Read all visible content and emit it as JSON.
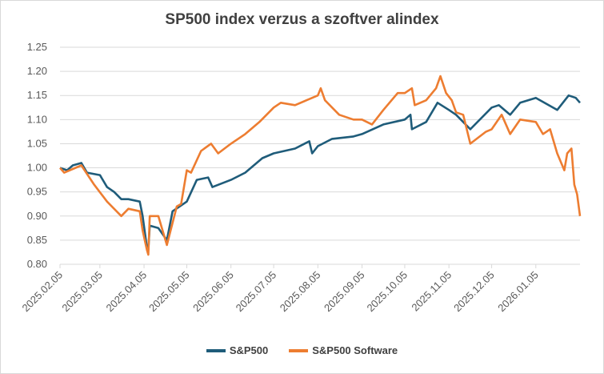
{
  "chart_data": {
    "type": "line",
    "title": "SP500 index verzus a szoftver alindex",
    "xlabel": "",
    "ylabel": "",
    "ylim": [
      0.8,
      1.25
    ],
    "yticks": [
      "0.80",
      "0.85",
      "0.90",
      "0.95",
      "1.00",
      "1.05",
      "1.10",
      "1.15",
      "1.20",
      "1.25"
    ],
    "xlim": [
      "2025-02-05",
      "2026-02-05"
    ],
    "xticks": [
      {
        "date": "2025-02-05",
        "label": "2025.02.05"
      },
      {
        "date": "2025-03-05",
        "label": "2025.03.05"
      },
      {
        "date": "2025-04-05",
        "label": "2025.04.05"
      },
      {
        "date": "2025-05-05",
        "label": "2025.05.05"
      },
      {
        "date": "2025-06-05",
        "label": "2025.06.05"
      },
      {
        "date": "2025-07-05",
        "label": "2025.07.05"
      },
      {
        "date": "2025-08-05",
        "label": "2025.08.05"
      },
      {
        "date": "2025-09-05",
        "label": "2025.09.05"
      },
      {
        "date": "2025-10-05",
        "label": "2025.10.05"
      },
      {
        "date": "2025-11-05",
        "label": "2025.11.05"
      },
      {
        "date": "2025-12-05",
        "label": "2025.12.05"
      },
      {
        "date": "2026-01-05",
        "label": "2026.01.05"
      }
    ],
    "grid": true,
    "legend_position": "bottom",
    "series": [
      {
        "name": "S&P500",
        "color": "#1F5C7A",
        "points": [
          [
            "2025-02-05",
            1.0
          ],
          [
            "2025-02-10",
            0.995
          ],
          [
            "2025-02-14",
            1.005
          ],
          [
            "2025-02-20",
            1.01
          ],
          [
            "2025-02-24",
            0.99
          ],
          [
            "2025-03-05",
            0.985
          ],
          [
            "2025-03-10",
            0.96
          ],
          [
            "2025-03-15",
            0.95
          ],
          [
            "2025-03-20",
            0.935
          ],
          [
            "2025-03-25",
            0.935
          ],
          [
            "2025-04-02",
            0.93
          ],
          [
            "2025-04-04",
            0.9
          ],
          [
            "2025-04-07",
            0.835
          ],
          [
            "2025-04-08",
            0.83
          ],
          [
            "2025-04-09",
            0.88
          ],
          [
            "2025-04-15",
            0.875
          ],
          [
            "2025-04-21",
            0.85
          ],
          [
            "2025-04-25",
            0.91
          ],
          [
            "2025-05-05",
            0.93
          ],
          [
            "2025-05-12",
            0.975
          ],
          [
            "2025-05-20",
            0.98
          ],
          [
            "2025-05-23",
            0.96
          ],
          [
            "2025-06-05",
            0.975
          ],
          [
            "2025-06-15",
            0.99
          ],
          [
            "2025-06-27",
            1.02
          ],
          [
            "2025-07-05",
            1.03
          ],
          [
            "2025-07-20",
            1.04
          ],
          [
            "2025-07-30",
            1.055
          ],
          [
            "2025-08-01",
            1.03
          ],
          [
            "2025-08-05",
            1.045
          ],
          [
            "2025-08-15",
            1.06
          ],
          [
            "2025-08-30",
            1.065
          ],
          [
            "2025-09-05",
            1.07
          ],
          [
            "2025-09-20",
            1.09
          ],
          [
            "2025-10-05",
            1.1
          ],
          [
            "2025-10-09",
            1.11
          ],
          [
            "2025-10-10",
            1.08
          ],
          [
            "2025-10-20",
            1.095
          ],
          [
            "2025-10-28",
            1.135
          ],
          [
            "2025-11-05",
            1.12
          ],
          [
            "2025-11-10",
            1.11
          ],
          [
            "2025-11-20",
            1.08
          ],
          [
            "2025-12-05",
            1.125
          ],
          [
            "2025-12-10",
            1.13
          ],
          [
            "2025-12-18",
            1.11
          ],
          [
            "2025-12-25",
            1.135
          ],
          [
            "2026-01-05",
            1.145
          ],
          [
            "2026-01-20",
            1.12
          ],
          [
            "2026-01-28",
            1.15
          ],
          [
            "2026-02-02",
            1.145
          ],
          [
            "2026-02-05",
            1.135
          ]
        ]
      },
      {
        "name": "S&P500 Software",
        "color": "#ED7D31",
        "points": [
          [
            "2025-02-05",
            1.0
          ],
          [
            "2025-02-08",
            0.99
          ],
          [
            "2025-02-20",
            1.005
          ],
          [
            "2025-03-01",
            0.965
          ],
          [
            "2025-03-10",
            0.93
          ],
          [
            "2025-03-20",
            0.9
          ],
          [
            "2025-03-25",
            0.915
          ],
          [
            "2025-04-02",
            0.91
          ],
          [
            "2025-04-03",
            0.89
          ],
          [
            "2025-04-04",
            0.87
          ],
          [
            "2025-04-07",
            0.83
          ],
          [
            "2025-04-08",
            0.82
          ],
          [
            "2025-04-09",
            0.9
          ],
          [
            "2025-04-15",
            0.9
          ],
          [
            "2025-04-21",
            0.84
          ],
          [
            "2025-04-28",
            0.92
          ],
          [
            "2025-05-01",
            0.925
          ],
          [
            "2025-05-05",
            0.995
          ],
          [
            "2025-05-08",
            0.99
          ],
          [
            "2025-05-15",
            1.035
          ],
          [
            "2025-05-22",
            1.05
          ],
          [
            "2025-05-27",
            1.03
          ],
          [
            "2025-06-05",
            1.05
          ],
          [
            "2025-06-15",
            1.07
          ],
          [
            "2025-06-25",
            1.095
          ],
          [
            "2025-07-05",
            1.125
          ],
          [
            "2025-07-10",
            1.135
          ],
          [
            "2025-07-20",
            1.13
          ],
          [
            "2025-07-28",
            1.14
          ],
          [
            "2025-08-05",
            1.15
          ],
          [
            "2025-08-07",
            1.165
          ],
          [
            "2025-08-10",
            1.14
          ],
          [
            "2025-08-20",
            1.11
          ],
          [
            "2025-08-30",
            1.1
          ],
          [
            "2025-09-05",
            1.1
          ],
          [
            "2025-09-12",
            1.09
          ],
          [
            "2025-09-20",
            1.12
          ],
          [
            "2025-09-30",
            1.155
          ],
          [
            "2025-10-05",
            1.155
          ],
          [
            "2025-10-10",
            1.165
          ],
          [
            "2025-10-12",
            1.13
          ],
          [
            "2025-10-20",
            1.14
          ],
          [
            "2025-10-27",
            1.165
          ],
          [
            "2025-10-30",
            1.19
          ],
          [
            "2025-11-03",
            1.155
          ],
          [
            "2025-11-07",
            1.14
          ],
          [
            "2025-11-10",
            1.115
          ],
          [
            "2025-11-15",
            1.11
          ],
          [
            "2025-11-20",
            1.05
          ],
          [
            "2025-12-01",
            1.075
          ],
          [
            "2025-12-05",
            1.08
          ],
          [
            "2025-12-12",
            1.11
          ],
          [
            "2025-12-18",
            1.07
          ],
          [
            "2025-12-25",
            1.1
          ],
          [
            "2026-01-05",
            1.095
          ],
          [
            "2026-01-10",
            1.07
          ],
          [
            "2026-01-15",
            1.08
          ],
          [
            "2026-01-20",
            1.03
          ],
          [
            "2026-01-25",
            0.995
          ],
          [
            "2026-01-27",
            1.03
          ],
          [
            "2026-01-30",
            1.04
          ],
          [
            "2026-02-01",
            0.965
          ],
          [
            "2026-02-03",
            0.945
          ],
          [
            "2026-02-05",
            0.9
          ]
        ]
      }
    ]
  }
}
